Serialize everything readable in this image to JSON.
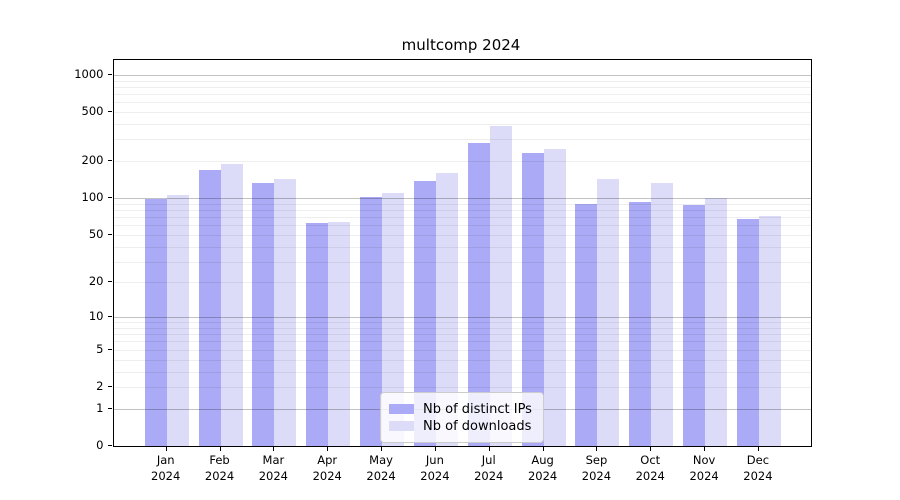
{
  "chart_data": {
    "type": "bar",
    "title": "multcomp 2024",
    "categories": [
      "Jan",
      "Feb",
      "Mar",
      "Apr",
      "May",
      "Jun",
      "Jul",
      "Aug",
      "Sep",
      "Oct",
      "Nov",
      "Dec"
    ],
    "category_year": "2024",
    "series": [
      {
        "name": "Nb of distinct IPs",
        "color": "#aaaaf6",
        "values": [
          99,
          170,
          133,
          62,
          102,
          138,
          282,
          234,
          89,
          93,
          88,
          68
        ]
      },
      {
        "name": "Nb of downloads",
        "color": "#dcdcf8",
        "values": [
          106,
          190,
          142,
          64,
          110,
          160,
          385,
          252,
          142,
          134,
          100,
          72
        ]
      }
    ],
    "yscale": "log1p",
    "yticks": [
      0,
      1,
      2,
      5,
      10,
      20,
      50,
      100,
      200,
      500,
      1000
    ],
    "ylim": [
      0,
      1320
    ],
    "xlabel": "",
    "ylabel": "",
    "grid": true,
    "legend_position": "lower center"
  }
}
